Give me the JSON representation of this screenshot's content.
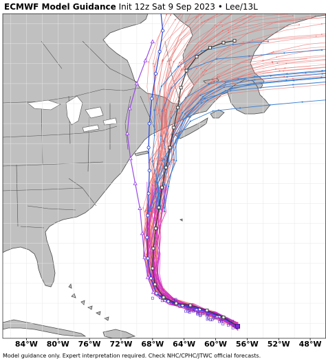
{
  "title": {
    "model": "ECMWF Model Guidance",
    "init": "Init 12z Sat 9 Sep 2023",
    "separator": "•",
    "storm": "Lee/13L"
  },
  "footer": "Model guidance only. Expert interpretation required. Check NHC/CPHC/JTWC official forecasts.",
  "x_ticks": [
    "84°W",
    "80°W",
    "76°W",
    "72°W",
    "68°W",
    "64°W",
    "60°W",
    "56°W",
    "52°W",
    "48°W"
  ],
  "colors": {
    "land": "#c0c0c0",
    "ocean": "#ffffff",
    "border": "#4a4a4a",
    "grid": "#e6e6e6",
    "ensemble_red": "#e8706e",
    "ensemble_pink": "#cc22cc",
    "ensemble_blue": "#3a7fd0",
    "control": "#333333",
    "hires_blue": "#1f3fd8",
    "violet": "#9a48e6"
  },
  "chart_data": {
    "type": "map",
    "extent": {
      "lon": [
        -87,
        -46
      ],
      "lat": [
        16.5,
        49
      ]
    },
    "x_ticks_lon": [
      -84,
      -80,
      -76,
      -72,
      -68,
      -64,
      -60,
      -56,
      -52,
      -48
    ],
    "grid": true,
    "tracks": {
      "control_track": [
        [
          -57.2,
          17.7
        ],
        [
          -59.0,
          18.6
        ],
        [
          -61.1,
          19.3
        ],
        [
          -63.2,
          19.8
        ],
        [
          -65.0,
          20.0
        ],
        [
          -66.6,
          20.6
        ],
        [
          -67.7,
          21.9
        ],
        [
          -68.0,
          23.5
        ],
        [
          -67.9,
          25.5
        ],
        [
          -67.6,
          27.5
        ],
        [
          -67.2,
          29.6
        ],
        [
          -66.8,
          31.6
        ],
        [
          -66.3,
          33.6
        ],
        [
          -65.8,
          35.6
        ],
        [
          -65.3,
          37.6
        ],
        [
          -64.8,
          39.6
        ],
        [
          -64.4,
          41.6
        ],
        [
          -63.7,
          43.3
        ],
        [
          -62.4,
          44.7
        ],
        [
          -60.7,
          45.6
        ],
        [
          -59.0,
          46.1
        ],
        [
          -57.6,
          46.3
        ]
      ],
      "hires_blue_track": [
        [
          -57.2,
          17.7
        ],
        [
          -59.5,
          18.7
        ],
        [
          -62.0,
          19.4
        ],
        [
          -64.2,
          19.8
        ],
        [
          -66.0,
          20.2
        ],
        [
          -67.5,
          21.0
        ],
        [
          -68.2,
          22.5
        ],
        [
          -68.6,
          24.5
        ],
        [
          -68.7,
          26.6
        ],
        [
          -68.6,
          28.8
        ],
        [
          -68.5,
          31.0
        ],
        [
          -68.4,
          33.3
        ],
        [
          -68.5,
          35.6
        ],
        [
          -68.4,
          38.0
        ],
        [
          -68.1,
          40.5
        ],
        [
          -67.6,
          43.0
        ],
        [
          -67.1,
          45.2
        ],
        [
          -66.7,
          47.3
        ],
        [
          -67.0,
          49.5
        ]
      ],
      "violet_track": [
        [
          -57.2,
          17.7
        ],
        [
          -59.8,
          18.7
        ],
        [
          -62.4,
          19.4
        ],
        [
          -64.6,
          19.9
        ],
        [
          -66.4,
          20.3
        ],
        [
          -67.9,
          21.1
        ],
        [
          -68.6,
          22.6
        ],
        [
          -69.0,
          24.6
        ],
        [
          -69.3,
          27.0
        ],
        [
          -69.6,
          29.5
        ],
        [
          -70.2,
          32.0
        ],
        [
          -70.8,
          34.5
        ],
        [
          -71.2,
          37.0
        ],
        [
          -70.9,
          39.5
        ],
        [
          -70.0,
          42.0
        ],
        [
          -68.9,
          44.3
        ],
        [
          -68.0,
          46.2
        ]
      ]
    }
  }
}
